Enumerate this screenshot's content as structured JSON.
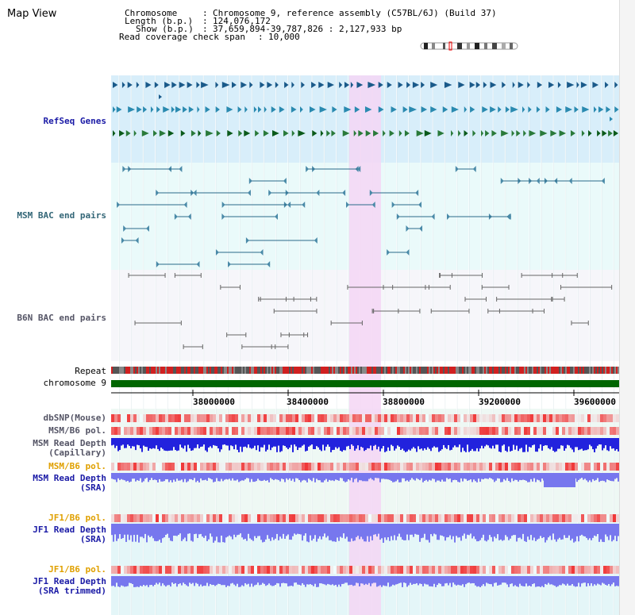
{
  "page_title": "Map View",
  "info": {
    "chromosome_key": "Chromosome",
    "chromosome_val": "Chromosome 9, reference assembly (C57BL/6J) (Build 37)",
    "length_key": "Length (b.p.)",
    "length_val": "124,076,172",
    "show_key": "Show (b.p.)",
    "show_val": "37,659,894-39,787,826 : 2,127,933 bp",
    "coverage_key": "Read coverage check span",
    "coverage_val": "10,000"
  },
  "tracks": {
    "refseq": "RefSeq Genes",
    "msm_bac": "MSM BAC end pairs",
    "b6n_bac": "B6N BAC end pairs",
    "repeat": "Repeat",
    "chromosome": "chromosome 9",
    "dbsnp": "dbSNP(Mouse)",
    "msm_b6_pol_1": "MSM/B6 pol.",
    "msm_read_depth_cap_1": "MSM Read Depth",
    "msm_read_depth_cap_2": "(Capillary)",
    "msm_b6_pol_2": "MSM/B6 pol.",
    "msm_read_depth_sra_1": "MSM Read Depth",
    "msm_read_depth_sra_2": "(SRA)",
    "jf1_b6_pol_1": "JF1/B6 pol.",
    "jf1_read_depth_sra_1": "JF1 Read Depth",
    "jf1_read_depth_sra_2": "(SRA)",
    "jf1_b6_pol_2": "JF1/B6 pol.",
    "jf1_read_depth_trim_1": "JF1 Read Depth",
    "jf1_read_depth_trim_2": "(SRA trimmed)"
  },
  "axis": {
    "ticks": [
      "38000000",
      "38400000",
      "38800000",
      "39200000",
      "39600000"
    ]
  },
  "colors": {
    "highlight": "#f5d6f5",
    "refseq_bg": "#d8eefa",
    "bac_bg": "#eafafa",
    "chromosome_bar": "#006600",
    "read_depth_cap": "#2222dd",
    "read_depth_sra": "#7777ee",
    "pol_red": "#e83030"
  }
}
